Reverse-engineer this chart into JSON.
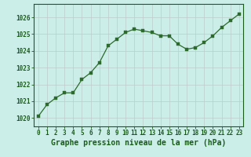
{
  "x": [
    0,
    1,
    2,
    3,
    4,
    5,
    6,
    7,
    8,
    9,
    10,
    11,
    12,
    13,
    14,
    15,
    16,
    17,
    18,
    19,
    20,
    21,
    22,
    23
  ],
  "y": [
    1020.1,
    1020.8,
    1021.2,
    1021.5,
    1021.5,
    1022.3,
    1022.7,
    1023.3,
    1024.3,
    1024.7,
    1025.1,
    1025.3,
    1025.2,
    1025.1,
    1024.9,
    1024.9,
    1024.4,
    1024.1,
    1024.2,
    1024.5,
    1024.9,
    1025.4,
    1025.8,
    1026.2
  ],
  "line_color": "#2d6a2d",
  "marker_color": "#2d6a2d",
  "bg_color": "#cceee8",
  "grid_color": "#bbcccc",
  "xlabel": "Graphe pression niveau de la mer (hPa)",
  "xlabel_color": "#1a5c1a",
  "ylabel_ticks": [
    1020,
    1021,
    1022,
    1023,
    1024,
    1025,
    1026
  ],
  "xlim": [
    -0.5,
    23.5
  ],
  "ylim": [
    1019.5,
    1026.8
  ],
  "xticks": [
    0,
    1,
    2,
    3,
    4,
    5,
    6,
    7,
    8,
    9,
    10,
    11,
    12,
    13,
    14,
    15,
    16,
    17,
    18,
    19,
    20,
    21,
    22,
    23
  ],
  "tick_color": "#1a5c1a",
  "border_color": "#1a5c1a",
  "tick_fontsize": 5.5,
  "ylabel_fontsize": 5.5,
  "xlabel_fontsize": 7.0
}
